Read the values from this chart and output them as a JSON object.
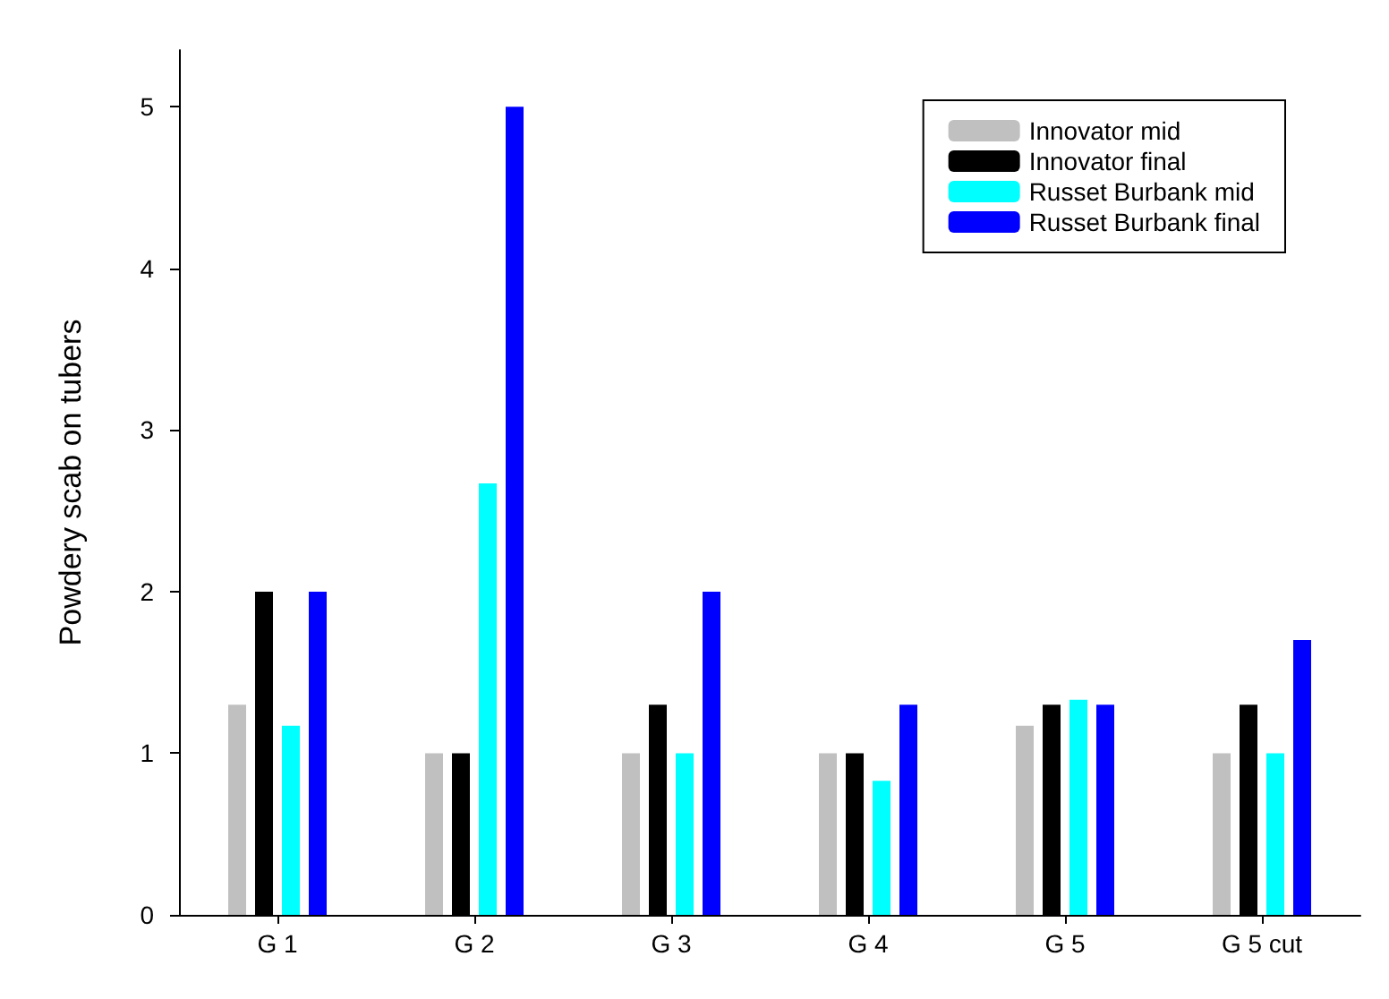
{
  "chart_data": {
    "type": "bar",
    "ylabel": "Powdery scab on tubers",
    "categories": [
      "G 1",
      "G 2",
      "G 3",
      "G 4",
      "G 5",
      "G 5 cut"
    ],
    "series": [
      {
        "name": "Innovator mid",
        "color": "#c0c0c0",
        "values": [
          1.3,
          1.0,
          1.0,
          1.0,
          1.17,
          1.0
        ]
      },
      {
        "name": "Innovator final",
        "color": "#000000",
        "values": [
          2.0,
          1.0,
          1.3,
          1.0,
          1.3,
          1.3
        ]
      },
      {
        "name": "Russet Burbank mid",
        "color": "#00ffff",
        "values": [
          1.17,
          2.67,
          1.0,
          0.83,
          1.33,
          1.0
        ]
      },
      {
        "name": "Russet Burbank final",
        "color": "#0000ff",
        "values": [
          2.0,
          5.0,
          2.0,
          1.3,
          1.3,
          1.7
        ]
      }
    ],
    "ylim": [
      0,
      5.35
    ],
    "yticks": [
      0,
      1,
      2,
      3,
      4,
      5
    ],
    "grid": false,
    "legend": "top right"
  }
}
